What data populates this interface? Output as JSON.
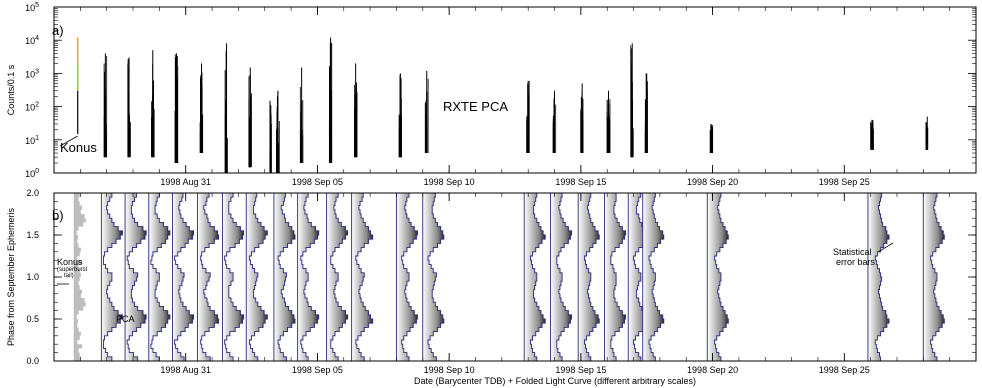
{
  "chart_data": [
    {
      "type": "line",
      "panel_tag": "a)",
      "ylabel": "Counts/0.1 s",
      "yscale": "log",
      "ylim": [
        1,
        100000
      ],
      "y_tick_labels": [
        "10^0",
        "10^1",
        "10^2",
        "10^3",
        "10^4",
        "10^5"
      ],
      "xlim": [
        "1998-08-26",
        "1998-09-30"
      ],
      "x_tick_labels": [
        "1998 Aug 31",
        "1998 Sep 05",
        "1998 Sep 10",
        "1998 Sep 15",
        "1998 Sep 20",
        "1998 Sep 25"
      ],
      "x_tick_dates": [
        "1998-08-31",
        "1998-09-05",
        "1998-09-10",
        "1998-09-15",
        "1998-09-20",
        "1998-09-25"
      ],
      "annotations": [
        "RXTE PCA",
        "Konus"
      ],
      "colors": {
        "pca": "#000000",
        "konus": "#9acd32",
        "konus_peak": "#e8a33a"
      },
      "series": [
        {
          "name": "Konus",
          "observations": [
            {
              "date": "1998-08-26.9",
              "min": 15,
              "max": 12000
            }
          ]
        },
        {
          "name": "RXTE PCA",
          "observations": [
            {
              "date": "1998-08-27.95",
              "min": 3,
              "max": 4000
            },
            {
              "date": "1998-08-28.85",
              "min": 3,
              "max": 3000
            },
            {
              "date": "1998-08-29.75",
              "min": 3,
              "max": 5000
            },
            {
              "date": "1998-08-30.65",
              "min": 2,
              "max": 4000
            },
            {
              "date": "1998-08-31.6",
              "min": 4,
              "max": 2000
            },
            {
              "date": "1998-09-01.55",
              "min": 1,
              "max": 8000
            },
            {
              "date": "1998-09-02.45",
              "min": 1.5,
              "max": 1500
            },
            {
              "date": "1998-09-03.2",
              "min": 1,
              "max": 150
            },
            {
              "date": "1998-09-03.5",
              "min": 1,
              "max": 300
            },
            {
              "date": "1998-09-04.4",
              "min": 2,
              "max": 1500
            },
            {
              "date": "1998-09-05.5",
              "min": 2,
              "max": 12000
            },
            {
              "date": "1998-09-06.45",
              "min": 3,
              "max": 2000
            },
            {
              "date": "1998-09-08.15",
              "min": 3,
              "max": 1000
            },
            {
              "date": "1998-09-09.15",
              "min": 4,
              "max": 1200
            },
            {
              "date": "1998-09-13.0",
              "min": 4,
              "max": 600
            },
            {
              "date": "1998-09-14.0",
              "min": 4,
              "max": 300
            },
            {
              "date": "1998-09-15.05",
              "min": 4,
              "max": 500
            },
            {
              "date": "1998-09-16.05",
              "min": 4,
              "max": 300
            },
            {
              "date": "1998-09-16.95",
              "min": 3,
              "max": 8000
            },
            {
              "date": "1998-09-17.5",
              "min": 4,
              "max": 1000
            },
            {
              "date": "1998-09-19.95",
              "min": 4,
              "max": 30
            },
            {
              "date": "1998-09-26.05",
              "min": 5,
              "max": 40
            },
            {
              "date": "1998-09-28.15",
              "min": 5,
              "max": 50
            }
          ]
        }
      ]
    },
    {
      "type": "line",
      "panel_tag": "b)",
      "ylabel": "Phase from September Ephemeris",
      "xlabel": "Date (Barycenter TDB) + Folded Light Curve (different arbitrary scales)",
      "ylim": [
        0,
        2
      ],
      "y_tick_labels": [
        "0.0",
        "0.5",
        "1.0",
        "1.5",
        "2.0"
      ],
      "xlim": [
        "1998-08-26",
        "1998-09-30"
      ],
      "x_tick_labels": [
        "1998 Aug 31",
        "1998 Sep 05",
        "1998 Sep 10",
        "1998 Sep 15",
        "1998 Sep 20",
        "1998 Sep 25"
      ],
      "x_tick_dates": [
        "1998-08-31",
        "1998-09-05",
        "1998-09-10",
        "1998-09-15",
        "1998-09-20",
        "1998-09-25"
      ],
      "annotations": {
        "konus": "Konus",
        "konus_note": "(superburst",
        "konus_note2": "tail)",
        "pca": "PCA",
        "error_bars": "Statistical",
        "error_bars2": "error bars"
      },
      "colors": {
        "profile_line": "#2a2a7a",
        "konus_fill": "#bdbdbd"
      },
      "phase_bins": [
        0.0,
        0.05,
        0.1,
        0.15,
        0.2,
        0.25,
        0.3,
        0.35,
        0.4,
        0.45,
        0.5,
        0.55,
        0.6,
        0.65,
        0.7,
        0.75,
        0.8,
        0.85,
        0.9,
        0.95
      ],
      "konus_profile": [
        0.6,
        0.5,
        0.4,
        0.7,
        0.3,
        0.5,
        0.6,
        0.4,
        0.3,
        0.35,
        0.25,
        0.4,
        0.8,
        1.0,
        0.9,
        0.6,
        0.7,
        0.5,
        0.4,
        0.5
      ],
      "pca_profiles": [
        {
          "date": "1998-08-27.95",
          "width": 0.8,
          "profile": [
            0.5,
            0.3,
            0.2,
            0.1,
            0.1,
            0.15,
            0.3,
            0.5,
            0.7,
            0.9,
            1.0,
            0.8,
            0.6,
            0.5,
            0.4,
            0.3,
            0.25,
            0.3,
            0.4,
            0.5
          ]
        },
        {
          "date": "1998-08-28.85",
          "width": 0.8,
          "profile": [
            0.6,
            0.4,
            0.2,
            0.15,
            0.1,
            0.2,
            0.35,
            0.55,
            0.75,
            0.95,
            1.0,
            0.85,
            0.6,
            0.45,
            0.35,
            0.3,
            0.3,
            0.35,
            0.45,
            0.55
          ]
        },
        {
          "date": "1998-08-29.75",
          "width": 0.8,
          "profile": [
            0.5,
            0.35,
            0.2,
            0.1,
            0.15,
            0.2,
            0.4,
            0.6,
            0.8,
            0.9,
            1.0,
            0.9,
            0.7,
            0.5,
            0.4,
            0.3,
            0.3,
            0.35,
            0.4,
            0.5
          ]
        },
        {
          "date": "1998-08-30.65",
          "width": 0.8,
          "profile": [
            0.55,
            0.4,
            0.25,
            0.15,
            0.1,
            0.25,
            0.4,
            0.6,
            0.75,
            0.95,
            1.0,
            0.8,
            0.65,
            0.5,
            0.4,
            0.35,
            0.3,
            0.35,
            0.45,
            0.5
          ]
        },
        {
          "date": "1998-08-31.6",
          "width": 0.8,
          "profile": [
            0.6,
            0.4,
            0.25,
            0.2,
            0.15,
            0.2,
            0.35,
            0.55,
            0.8,
            1.0,
            0.95,
            0.8,
            0.6,
            0.5,
            0.45,
            0.35,
            0.3,
            0.4,
            0.45,
            0.55
          ]
        },
        {
          "date": "1998-09-01.55",
          "width": 0.8,
          "profile": [
            0.5,
            0.35,
            0.2,
            0.15,
            0.1,
            0.2,
            0.35,
            0.6,
            0.8,
            0.95,
            1.0,
            0.85,
            0.65,
            0.5,
            0.4,
            0.3,
            0.3,
            0.3,
            0.4,
            0.5
          ]
        },
        {
          "date": "1998-09-02.45",
          "width": 0.8,
          "profile": [
            0.55,
            0.4,
            0.3,
            0.2,
            0.15,
            0.25,
            0.4,
            0.6,
            0.8,
            0.9,
            1.0,
            0.85,
            0.7,
            0.55,
            0.45,
            0.35,
            0.35,
            0.4,
            0.45,
            0.5
          ]
        },
        {
          "date": "1998-09-03.5",
          "width": 0.8,
          "profile": [
            0.6,
            0.45,
            0.3,
            0.25,
            0.2,
            0.3,
            0.45,
            0.65,
            0.85,
            1.0,
            0.95,
            0.85,
            0.7,
            0.55,
            0.5,
            0.4,
            0.35,
            0.45,
            0.5,
            0.55
          ]
        },
        {
          "date": "1998-09-04.4",
          "width": 0.8,
          "profile": [
            0.5,
            0.4,
            0.25,
            0.2,
            0.15,
            0.25,
            0.4,
            0.6,
            0.8,
            0.95,
            1.0,
            0.85,
            0.65,
            0.5,
            0.45,
            0.35,
            0.3,
            0.35,
            0.4,
            0.5
          ]
        },
        {
          "date": "1998-09-05.5",
          "width": 0.8,
          "profile": [
            0.55,
            0.4,
            0.3,
            0.2,
            0.2,
            0.3,
            0.4,
            0.6,
            0.75,
            0.9,
            1.0,
            0.9,
            0.7,
            0.55,
            0.45,
            0.4,
            0.35,
            0.4,
            0.45,
            0.55
          ]
        },
        {
          "date": "1998-09-06.45",
          "width": 0.8,
          "profile": [
            0.6,
            0.45,
            0.35,
            0.25,
            0.2,
            0.3,
            0.45,
            0.6,
            0.8,
            1.0,
            0.9,
            0.8,
            0.65,
            0.55,
            0.45,
            0.4,
            0.35,
            0.4,
            0.5,
            0.55
          ]
        },
        {
          "date": "1998-09-08.15",
          "width": 0.8,
          "profile": [
            0.6,
            0.5,
            0.35,
            0.3,
            0.25,
            0.35,
            0.5,
            0.65,
            0.8,
            0.95,
            1.0,
            0.85,
            0.7,
            0.6,
            0.5,
            0.45,
            0.4,
            0.45,
            0.5,
            0.6
          ]
        },
        {
          "date": "1998-09-09.15",
          "width": 0.8,
          "profile": [
            0.65,
            0.5,
            0.4,
            0.3,
            0.25,
            0.35,
            0.5,
            0.7,
            0.85,
            1.0,
            0.95,
            0.85,
            0.7,
            0.6,
            0.5,
            0.45,
            0.45,
            0.5,
            0.55,
            0.6
          ]
        },
        {
          "date": "1998-09-13.0",
          "width": 0.8,
          "profile": [
            0.6,
            0.5,
            0.4,
            0.35,
            0.3,
            0.4,
            0.55,
            0.7,
            0.85,
            1.0,
            0.9,
            0.8,
            0.7,
            0.6,
            0.5,
            0.45,
            0.45,
            0.5,
            0.55,
            0.6
          ]
        },
        {
          "date": "1998-09-14.0",
          "width": 0.8,
          "profile": [
            0.55,
            0.45,
            0.35,
            0.3,
            0.3,
            0.4,
            0.5,
            0.65,
            0.85,
            0.95,
            1.0,
            0.85,
            0.7,
            0.6,
            0.5,
            0.45,
            0.4,
            0.45,
            0.5,
            0.55
          ]
        },
        {
          "date": "1998-09-15.05",
          "width": 0.8,
          "profile": [
            0.6,
            0.5,
            0.4,
            0.35,
            0.3,
            0.4,
            0.55,
            0.7,
            0.85,
            1.0,
            0.95,
            0.8,
            0.7,
            0.6,
            0.55,
            0.5,
            0.45,
            0.5,
            0.55,
            0.6
          ]
        },
        {
          "date": "1998-09-16.05",
          "width": 0.8,
          "profile": [
            0.55,
            0.45,
            0.4,
            0.3,
            0.3,
            0.35,
            0.5,
            0.7,
            0.85,
            0.95,
            1.0,
            0.85,
            0.7,
            0.6,
            0.5,
            0.45,
            0.45,
            0.5,
            0.55,
            0.55
          ]
        },
        {
          "date": "1998-09-16.95",
          "width": 0.8,
          "profile": [
            0.6,
            0.5,
            0.35,
            0.3,
            0.25,
            0.35,
            0.5,
            0.7,
            0.9,
            1.0,
            0.95,
            0.8,
            0.65,
            0.55,
            0.5,
            0.4,
            0.4,
            0.45,
            0.5,
            0.6
          ]
        },
        {
          "date": "1998-09-17.5",
          "width": 0.8,
          "profile": [
            0.6,
            0.5,
            0.4,
            0.35,
            0.3,
            0.4,
            0.55,
            0.7,
            0.85,
            1.0,
            0.95,
            0.8,
            0.7,
            0.6,
            0.55,
            0.5,
            0.45,
            0.5,
            0.55,
            0.6
          ]
        },
        {
          "date": "1998-09-19.95",
          "width": 0.8,
          "profile": [
            0.65,
            0.55,
            0.45,
            0.4,
            0.35,
            0.45,
            0.6,
            0.75,
            0.9,
            1.0,
            0.95,
            0.85,
            0.75,
            0.65,
            0.6,
            0.55,
            0.5,
            0.55,
            0.6,
            0.65
          ]
        },
        {
          "date": "1998-09-26.05",
          "width": 0.8,
          "profile": [
            0.6,
            0.55,
            0.45,
            0.4,
            0.35,
            0.45,
            0.6,
            0.75,
            0.9,
            1.0,
            0.9,
            0.85,
            0.7,
            0.65,
            0.6,
            0.55,
            0.5,
            0.55,
            0.6,
            0.65
          ]
        },
        {
          "date": "1998-09-28.15",
          "width": 0.8,
          "profile": [
            0.65,
            0.55,
            0.45,
            0.4,
            0.35,
            0.45,
            0.6,
            0.75,
            0.9,
            1.0,
            0.95,
            0.85,
            0.75,
            0.65,
            0.6,
            0.55,
            0.5,
            0.55,
            0.6,
            0.65
          ]
        }
      ]
    }
  ]
}
